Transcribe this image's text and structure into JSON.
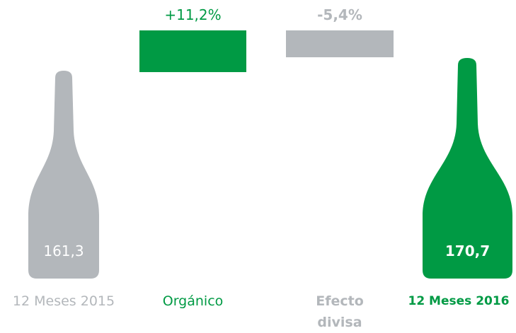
{
  "items": [
    {
      "label": "12 Meses 2015",
      "value_label": "161,3"
    },
    {
      "label": "Orgánico",
      "value_label": "+11,2%"
    },
    {
      "label": "Efecto divisa",
      "value_label": "-5,4%"
    },
    {
      "label": "12 Meses 2016",
      "value_label": "170,7"
    }
  ]
}
